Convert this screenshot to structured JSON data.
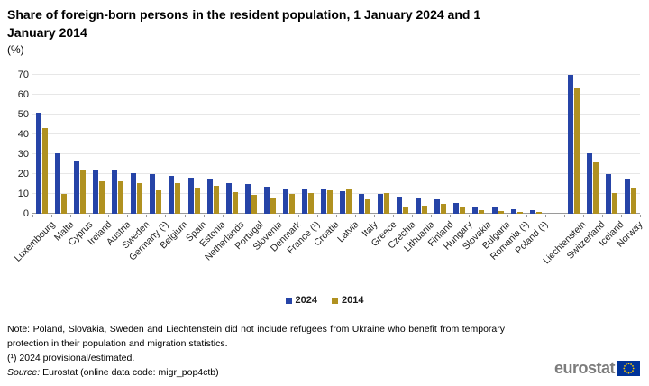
{
  "header": {
    "title": "Share of foreign-born persons in the resident population, 1 January 2024 and 1 January 2014",
    "unit": "(%)"
  },
  "chart_data": {
    "type": "bar",
    "title": "Share of foreign-born persons in the resident population, 1 January 2024 and 1 January 2014",
    "ylabel": "(%)",
    "xlabel": "",
    "ylim": [
      0,
      70
    ],
    "yticks": [
      0,
      10,
      20,
      30,
      40,
      50,
      60,
      70
    ],
    "grid": true,
    "legend_position": "bottom-center",
    "gap_after_index": 26,
    "categories": [
      "Luxembourg",
      "Malta",
      "Cyprus",
      "Ireland",
      "Austria",
      "Sweden",
      "Germany (¹)",
      "Belgium",
      "Spain",
      "Estonia",
      "Netherlands",
      "Portugal",
      "Slovenia",
      "Denmark",
      "France (¹)",
      "Croatia",
      "Latvia",
      "Italy",
      "Greece",
      "Czechia",
      "Lithuania",
      "Finland",
      "Hungary",
      "Slovakia",
      "Bulgaria",
      "Romania (¹)",
      "Poland (¹)",
      "Liechtenstein",
      "Switzerland",
      "Iceland",
      "Norway"
    ],
    "series": [
      {
        "name": "2024",
        "color": "#2644A7",
        "values": [
          51,
          30.5,
          26.5,
          22.5,
          22,
          20.5,
          20,
          19,
          18,
          17.5,
          15.5,
          15,
          13.5,
          12.5,
          12.5,
          12.5,
          11.5,
          10,
          10,
          8.5,
          8,
          7.5,
          5.5,
          3.5,
          3,
          2.5,
          2,
          70,
          30.5,
          20,
          17.5
        ]
      },
      {
        "name": "2014",
        "color": "#B09120",
        "values": [
          43,
          10,
          22,
          16.5,
          16.5,
          15.5,
          12,
          15.5,
          13,
          14,
          11,
          9.5,
          8,
          10,
          10.5,
          12,
          12.5,
          7.5,
          10.5,
          3,
          4,
          5,
          3,
          2,
          1.5,
          1,
          1,
          63,
          26,
          10.5,
          13
        ]
      }
    ]
  },
  "footnotes": {
    "note": "Note: Poland, Slovakia, Sweden and Liechtenstein did not include refugees from Ukraine who benefit from temporary protection in their population and migration statistics.",
    "flag": "(¹) 2024 provisional/estimated.",
    "source_label": "Source:",
    "source_text": " Eurostat (online data code: migr_pop4ctb)"
  },
  "logo": {
    "text": "eurostat",
    "flag_blue": "#003399",
    "star_yellow": "#FFCC00"
  }
}
